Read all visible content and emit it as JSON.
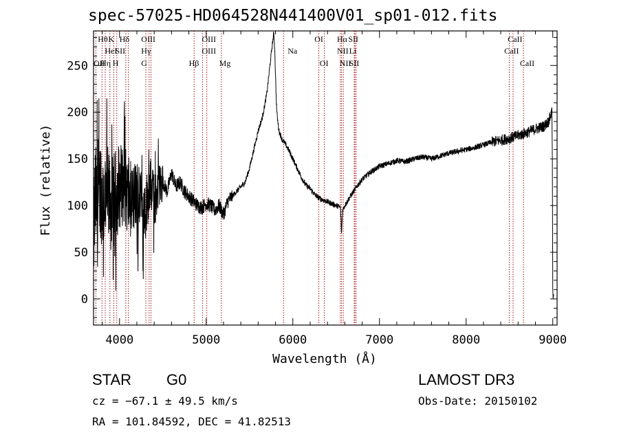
{
  "chart_data": {
    "type": "line",
    "title": "spec-57025-HD064528N441400V01_sp01-012.fits",
    "xlabel": "Wavelength (Å)",
    "ylabel": "Flux (relative)",
    "xlim": [
      3700,
      9050
    ],
    "ylim": [
      -28,
      287
    ],
    "xticks": [
      4000,
      5000,
      6000,
      7000,
      8000,
      9000
    ],
    "xtick_labels": [
      "4000",
      "5000",
      "6000",
      "7000",
      "8000",
      "9000"
    ],
    "yticks": [
      0,
      50,
      100,
      150,
      200,
      250
    ],
    "ytick_labels": [
      "0",
      "50",
      "100",
      "150",
      "200",
      "250"
    ],
    "grid": false,
    "series": [
      {
        "name": "flux",
        "color": "#000000",
        "anchors_x": [
          3700,
          3720,
          3750,
          3780,
          3800,
          3850,
          3900,
          3950,
          4000,
          4050,
          4100,
          4150,
          4200,
          4250,
          4300,
          4350,
          4400,
          4450,
          4500,
          4550,
          4600,
          4650,
          4700,
          4750,
          4800,
          4850,
          4900,
          4950,
          5000,
          5050,
          5100,
          5150,
          5200,
          5250,
          5300,
          5350,
          5400,
          5450,
          5500,
          5550,
          5600,
          5650,
          5700,
          5730,
          5760,
          5780,
          5790,
          5800,
          5810,
          5820,
          5840,
          5860,
          5880,
          5900,
          5950,
          6000,
          6050,
          6100,
          6150,
          6200,
          6250,
          6300,
          6350,
          6400,
          6450,
          6500,
          6550,
          6562,
          6575,
          6600,
          6650,
          6700,
          6750,
          6800,
          6900,
          7000,
          7100,
          7200,
          7300,
          7400,
          7500,
          7600,
          7700,
          7800,
          7900,
          8000,
          8100,
          8200,
          8300,
          8400,
          8500,
          8600,
          8700,
          8800,
          8900,
          8950,
          8990,
          9000,
          9010
        ],
        "anchors_y": [
          65,
          110,
          90,
          125,
          105,
          115,
          100,
          110,
          120,
          125,
          110,
          105,
          115,
          100,
          95,
          125,
          105,
          120,
          125,
          115,
          135,
          120,
          125,
          115,
          110,
          105,
          100,
          98,
          102,
          100,
          95,
          100,
          90,
          105,
          110,
          115,
          120,
          125,
          140,
          160,
          180,
          195,
          220,
          245,
          270,
          285,
          270,
          240,
          210,
          195,
          180,
          175,
          170,
          168,
          160,
          150,
          140,
          130,
          122,
          118,
          112,
          108,
          106,
          104,
          102,
          100,
          98,
          70,
          95,
          100,
          108,
          115,
          122,
          128,
          136,
          142,
          145,
          148,
          147,
          150,
          152,
          150,
          153,
          156,
          158,
          160,
          162,
          165,
          168,
          170,
          172,
          175,
          178,
          182,
          185,
          190,
          200,
          0,
          5
        ],
        "noise_amplitude_blue": 55,
        "noise_amplitude_red": 3
      }
    ],
    "lines": [
      {
        "name": "OII",
        "wl": 3727,
        "row": 2,
        "label_wl": 3700
      },
      {
        "name": "Hθ",
        "wl": 3798,
        "row": 0,
        "label_wl": 3750
      },
      {
        "name": "Hη",
        "wl": 3835,
        "row": 2,
        "label_wl": 3780
      },
      {
        "name": "HeI",
        "wl": 3889,
        "row": 1,
        "label_wl": 3830
      },
      {
        "name": "K",
        "wl": 3934,
        "row": 0,
        "label_wl": 3870
      },
      {
        "name": "SII",
        "wl": 4072,
        "row": 1,
        "label_wl": 3950
      },
      {
        "name": "H",
        "wl": 3968,
        "row": 2,
        "label_wl": 3920
      },
      {
        "name": "Hδ",
        "wl": 4102,
        "row": 0,
        "label_wl": 4000
      },
      {
        "name": "OIII",
        "wl": 4363,
        "row": 0,
        "label_wl": 4250
      },
      {
        "name": "Hγ",
        "wl": 4341,
        "row": 1,
        "label_wl": 4250
      },
      {
        "name": "G",
        "wl": 4304,
        "row": 2,
        "label_wl": 4250
      },
      {
        "name": "Hβ",
        "wl": 4861,
        "row": 2,
        "label_wl": 4800
      },
      {
        "name": "OIII",
        "wl": 4959,
        "row": 0,
        "label_wl": 4950
      },
      {
        "name": "OIII",
        "wl": 5007,
        "row": 1,
        "label_wl": 4950
      },
      {
        "name": "Mg",
        "wl": 5175,
        "row": 2,
        "label_wl": 5150
      },
      {
        "name": "Na",
        "wl": 5893,
        "row": 1,
        "label_wl": 5940
      },
      {
        "name": "OI",
        "wl": 6300,
        "row": 0,
        "label_wl": 6250
      },
      {
        "name": "OI",
        "wl": 6363,
        "row": 2,
        "label_wl": 6310
      },
      {
        "name": "Hα",
        "wl": 6563,
        "row": 0,
        "label_wl": 6510
      },
      {
        "name": "SII",
        "wl": 6717,
        "row": 0,
        "label_wl": 6640
      },
      {
        "name": "NII",
        "wl": 6548,
        "row": 1,
        "label_wl": 6510
      },
      {
        "name": "Li",
        "wl": 6708,
        "row": 1,
        "label_wl": 6650
      },
      {
        "name": "NII",
        "wl": 6583,
        "row": 2,
        "label_wl": 6540
      },
      {
        "name": "SII",
        "wl": 6731,
        "row": 2,
        "label_wl": 6650
      },
      {
        "name": "CaII",
        "wl": 8542,
        "row": 0,
        "label_wl": 8480
      },
      {
        "name": "CaII",
        "wl": 8498,
        "row": 1,
        "label_wl": 8440
      },
      {
        "name": "CaII",
        "wl": 8662,
        "row": 2,
        "label_wl": 8620
      }
    ],
    "line_color": "#a01010"
  },
  "info": {
    "class": "STAR",
    "subclass": "G0",
    "survey": "LAMOST DR3",
    "cz": "cz = −67.1 ± 49.5 km/s",
    "obs_date": "Obs-Date: 20150102",
    "radec": "RA = 101.84592, DEC =  41.82513"
  }
}
